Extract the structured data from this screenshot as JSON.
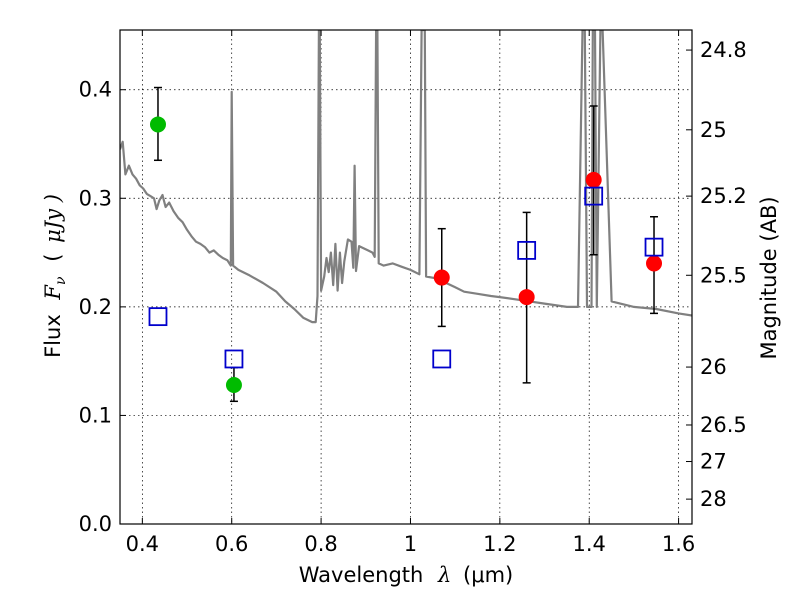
{
  "chart_data": {
    "type": "scatter",
    "xlabel": {
      "prefix": "Wavelength",
      "sym": "λ",
      "open": "(",
      "unit": "μm)"
    },
    "ylabel": {
      "prefix": "Flux",
      "sym": "F",
      "sub": "ν",
      "open": "(",
      "unit": "μJy )"
    },
    "ylabel_right": "Magnitude (AB)",
    "xlim": [
      0.35,
      1.63
    ],
    "ylim": [
      0.0,
      0.455
    ],
    "grid": true,
    "x_ticks": [
      0.4,
      0.6,
      0.8,
      1.0,
      1.2,
      1.4,
      1.6
    ],
    "x_tick_labels": [
      "0.4",
      "0.6",
      "0.8",
      "1",
      "1.2",
      "1.4",
      "1.6"
    ],
    "y_ticks": [
      0.0,
      0.1,
      0.2,
      0.3,
      0.4
    ],
    "y_tick_labels": [
      "0.0",
      "0.1",
      "0.2",
      "0.3",
      "0.4"
    ],
    "right_ticks": [
      {
        "label": "24.8",
        "value": 24.8
      },
      {
        "label": "25",
        "value": 25.0
      },
      {
        "label": "25.2",
        "value": 25.2
      },
      {
        "label": "25.5",
        "value": 25.5
      },
      {
        "label": "26",
        "value": 26.0
      },
      {
        "label": "26.5",
        "value": 26.5
      },
      {
        "label": "27",
        "value": 27.0
      },
      {
        "label": "28",
        "value": 28.0
      }
    ],
    "series": [
      {
        "color": "#808080",
        "points": [
          [
            0.35,
            0.345
          ],
          [
            0.356,
            0.352
          ],
          [
            0.362,
            0.322
          ],
          [
            0.37,
            0.33
          ],
          [
            0.378,
            0.322
          ],
          [
            0.386,
            0.318
          ],
          [
            0.394,
            0.312
          ],
          [
            0.402,
            0.309
          ],
          [
            0.41,
            0.304
          ],
          [
            0.418,
            0.302
          ],
          [
            0.426,
            0.3
          ],
          [
            0.432,
            0.29
          ],
          [
            0.438,
            0.298
          ],
          [
            0.445,
            0.303
          ],
          [
            0.452,
            0.292
          ],
          [
            0.46,
            0.296
          ],
          [
            0.47,
            0.288
          ],
          [
            0.48,
            0.282
          ],
          [
            0.49,
            0.278
          ],
          [
            0.5,
            0.271
          ],
          [
            0.51,
            0.265
          ],
          [
            0.52,
            0.26
          ],
          [
            0.53,
            0.258
          ],
          [
            0.54,
            0.255
          ],
          [
            0.55,
            0.25
          ],
          [
            0.56,
            0.252
          ],
          [
            0.57,
            0.248
          ],
          [
            0.58,
            0.245
          ],
          [
            0.59,
            0.243
          ],
          [
            0.598,
            0.238
          ],
          [
            0.6,
            0.398
          ],
          [
            0.603,
            0.238
          ],
          [
            0.615,
            0.234
          ],
          [
            0.64,
            0.229
          ],
          [
            0.67,
            0.222
          ],
          [
            0.7,
            0.214
          ],
          [
            0.72,
            0.205
          ],
          [
            0.74,
            0.198
          ],
          [
            0.76,
            0.19
          ],
          [
            0.78,
            0.186
          ],
          [
            0.788,
            0.186
          ],
          [
            0.792,
            0.21
          ],
          [
            0.795,
            0.455
          ],
          [
            0.797,
            0.455
          ],
          [
            0.8,
            0.215
          ],
          [
            0.807,
            0.228
          ],
          [
            0.812,
            0.245
          ],
          [
            0.817,
            0.232
          ],
          [
            0.822,
            0.25
          ],
          [
            0.827,
            0.22
          ],
          [
            0.832,
            0.258
          ],
          [
            0.837,
            0.215
          ],
          [
            0.842,
            0.25
          ],
          [
            0.847,
            0.222
          ],
          [
            0.852,
            0.242
          ],
          [
            0.86,
            0.262
          ],
          [
            0.868,
            0.26
          ],
          [
            0.872,
            0.236
          ],
          [
            0.875,
            0.33
          ],
          [
            0.878,
            0.233
          ],
          [
            0.885,
            0.256
          ],
          [
            0.895,
            0.254
          ],
          [
            0.905,
            0.252
          ],
          [
            0.915,
            0.25
          ],
          [
            0.92,
            0.246
          ],
          [
            0.923,
            0.455
          ],
          [
            0.926,
            0.455
          ],
          [
            0.929,
            0.24
          ],
          [
            0.94,
            0.238
          ],
          [
            0.96,
            0.24
          ],
          [
            0.98,
            0.237
          ],
          [
            1.0,
            0.234
          ],
          [
            1.02,
            0.23
          ],
          [
            1.025,
            0.455
          ],
          [
            1.032,
            0.455
          ],
          [
            1.035,
            0.228
          ],
          [
            1.06,
            0.226
          ],
          [
            1.08,
            0.222
          ],
          [
            1.1,
            0.218
          ],
          [
            1.12,
            0.214
          ],
          [
            1.15,
            0.212
          ],
          [
            1.18,
            0.21
          ],
          [
            1.2,
            0.209
          ],
          [
            1.25,
            0.206
          ],
          [
            1.3,
            0.203
          ],
          [
            1.35,
            0.2
          ],
          [
            1.375,
            0.2
          ],
          [
            1.385,
            0.455
          ],
          [
            1.39,
            0.455
          ],
          [
            1.395,
            0.2
          ],
          [
            1.405,
            0.2
          ],
          [
            1.408,
            0.455
          ],
          [
            1.413,
            0.455
          ],
          [
            1.417,
            0.2
          ],
          [
            1.425,
            0.455
          ],
          [
            1.43,
            0.455
          ],
          [
            1.45,
            0.205
          ],
          [
            1.5,
            0.2
          ],
          [
            1.55,
            0.198
          ],
          [
            1.6,
            0.194
          ],
          [
            1.63,
            0.192
          ]
        ]
      },
      {
        "color": "#00bb00",
        "points": [
          {
            "x": 0.435,
            "y": 0.368,
            "err": [
              0.335,
              0.402
            ]
          },
          {
            "x": 0.605,
            "y": 0.128,
            "err": [
              0.113,
              0.144
            ]
          }
        ]
      },
      {
        "color": "#ff0000",
        "points": [
          {
            "x": 1.07,
            "y": 0.227,
            "err": [
              0.182,
              0.272
            ]
          },
          {
            "x": 1.26,
            "y": 0.209,
            "err": [
              0.13,
              0.287
            ]
          },
          {
            "x": 1.41,
            "y": 0.317,
            "err": [
              0.248,
              0.385
            ]
          },
          {
            "x": 1.545,
            "y": 0.24,
            "err": [
              0.194,
              0.283
            ]
          }
        ]
      },
      {
        "color": "#0000cc",
        "points": [
          {
            "x": 0.435,
            "y": 0.191
          },
          {
            "x": 0.605,
            "y": 0.152
          },
          {
            "x": 1.07,
            "y": 0.152
          },
          {
            "x": 1.26,
            "y": 0.252
          },
          {
            "x": 1.41,
            "y": 0.302
          },
          {
            "x": 1.545,
            "y": 0.255
          }
        ]
      }
    ]
  }
}
